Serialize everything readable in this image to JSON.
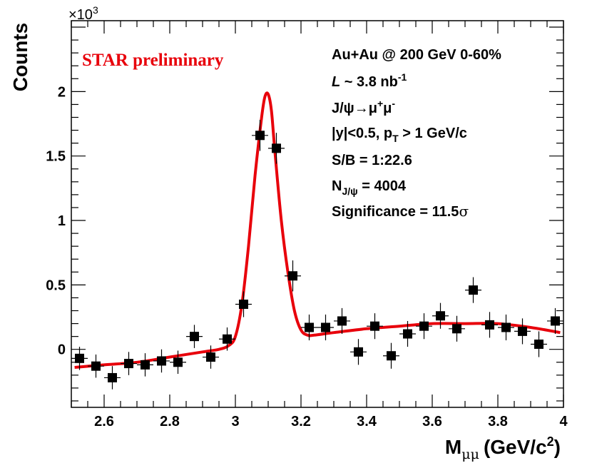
{
  "chart_data": {
    "type": "scatter",
    "title": "",
    "xlabel": "M",
    "xlabel_sub": "μμ",
    "xlabel_unit_pre": "(GeV/c",
    "xlabel_unit_sup": "2",
    "xlabel_unit_post": ")",
    "ylabel": "Counts",
    "y_multiplier": "×10",
    "y_multiplier_exp": "3",
    "xlim": [
      2.5,
      4.0
    ],
    "ylim": [
      -0.45,
      2.55
    ],
    "x_ticks": [
      2.6,
      2.8,
      3.0,
      3.2,
      3.4,
      3.6,
      3.8,
      4.0
    ],
    "x_tick_labels": [
      "2.6",
      "2.8",
      "3",
      "3.2",
      "3.4",
      "3.6",
      "3.8",
      "4"
    ],
    "y_ticks": [
      0,
      0.5,
      1.0,
      1.5,
      2.0
    ],
    "y_tick_labels": [
      "0",
      "0.5",
      "1",
      "1.5",
      "2"
    ],
    "bin_halfwidth": 0.025,
    "series": [
      {
        "name": "data",
        "marker": "filled-square",
        "color": "#000000",
        "x": [
          2.525,
          2.575,
          2.625,
          2.675,
          2.725,
          2.775,
          2.825,
          2.875,
          2.925,
          2.975,
          3.025,
          3.075,
          3.125,
          3.175,
          3.225,
          3.275,
          3.325,
          3.375,
          3.425,
          3.475,
          3.525,
          3.575,
          3.625,
          3.675,
          3.725,
          3.775,
          3.825,
          3.875,
          3.925,
          3.975
        ],
        "y": [
          -0.07,
          -0.13,
          -0.22,
          -0.11,
          -0.12,
          -0.09,
          -0.1,
          0.1,
          -0.06,
          0.08,
          0.35,
          1.66,
          1.56,
          0.57,
          0.17,
          0.17,
          0.22,
          -0.02,
          0.18,
          -0.05,
          0.12,
          0.18,
          0.26,
          0.16,
          0.46,
          0.19,
          0.17,
          0.14,
          0.04,
          0.22
        ],
        "yerr": [
          0.09,
          0.09,
          0.09,
          0.09,
          0.09,
          0.09,
          0.09,
          0.09,
          0.09,
          0.09,
          0.1,
          0.12,
          0.12,
          0.12,
          0.1,
          0.1,
          0.1,
          0.1,
          0.1,
          0.1,
          0.1,
          0.1,
          0.1,
          0.1,
          0.1,
          0.1,
          0.1,
          0.1,
          0.1,
          0.1
        ]
      },
      {
        "name": "fit",
        "type": "line",
        "color": "#e8000b",
        "x": [
          2.51,
          2.6,
          2.7,
          2.8,
          2.9,
          2.95,
          2.98,
          3.0,
          3.02,
          3.04,
          3.06,
          3.08,
          3.09,
          3.1,
          3.11,
          3.12,
          3.14,
          3.16,
          3.18,
          3.2,
          3.22,
          3.24,
          3.3,
          3.4,
          3.5,
          3.6,
          3.7,
          3.8,
          3.9,
          3.99
        ],
        "y": [
          -0.14,
          -0.12,
          -0.1,
          -0.06,
          -0.02,
          0.0,
          0.03,
          0.1,
          0.35,
          0.8,
          1.35,
          1.8,
          1.96,
          1.98,
          1.85,
          1.55,
          1.0,
          0.6,
          0.3,
          0.15,
          0.11,
          0.11,
          0.13,
          0.16,
          0.18,
          0.2,
          0.2,
          0.2,
          0.17,
          0.13
        ]
      }
    ],
    "annotations": {
      "star_label": "STAR preliminary",
      "system": "Au+Au @ 200 GeV 0-60%",
      "lumi_sym": "L",
      "lumi_val": " ~ 3.8 nb",
      "lumi_sup": "-1",
      "decay": "J/ψ→μ",
      "decay_sup1": "+",
      "decay_mu": "μ",
      "decay_sup2": "-",
      "cuts_pre": "|y|<0.5, p",
      "cuts_sub": "T",
      "cuts_post": " > 1 GeV/c",
      "sb": "S/B = 1:22.6",
      "n_sym": "N",
      "n_sub": "J/ψ",
      "n_val": " = 4004",
      "significance_pre": "Significance = 11.5",
      "significance_sym": "σ"
    }
  }
}
